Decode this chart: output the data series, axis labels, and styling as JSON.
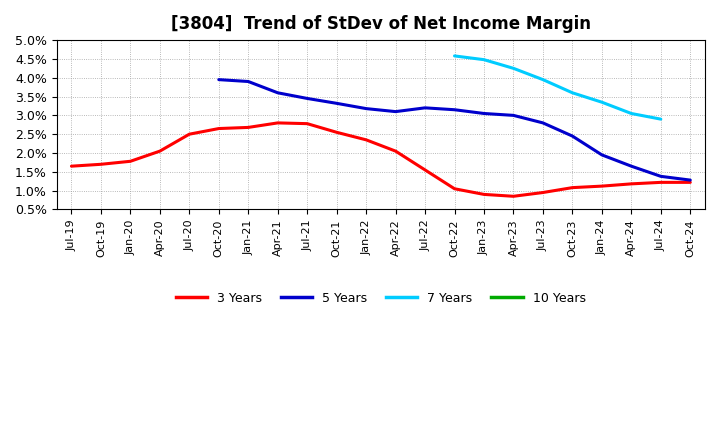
{
  "title": "[3804]  Trend of StDev of Net Income Margin",
  "x_labels": [
    "Jul-19",
    "Oct-19",
    "Jan-20",
    "Apr-20",
    "Jul-20",
    "Oct-20",
    "Jan-21",
    "Apr-21",
    "Jul-21",
    "Oct-21",
    "Jan-22",
    "Apr-22",
    "Jul-22",
    "Oct-22",
    "Jan-23",
    "Apr-23",
    "Jul-23",
    "Oct-23",
    "Jan-24",
    "Apr-24",
    "Jul-24",
    "Oct-24"
  ],
  "ylim": [
    0.005,
    0.05
  ],
  "yticks": [
    0.005,
    0.01,
    0.015,
    0.02,
    0.025,
    0.03,
    0.035,
    0.04,
    0.045,
    0.05
  ],
  "ytick_labels": [
    "0.5%",
    "1.0%",
    "1.5%",
    "2.0%",
    "2.5%",
    "3.0%",
    "3.5%",
    "4.0%",
    "4.5%",
    "5.0%"
  ],
  "series": {
    "3 Years": {
      "color": "#FF0000",
      "linewidth": 2.2,
      "values": [
        0.0165,
        0.017,
        0.0178,
        0.0205,
        0.025,
        0.0265,
        0.0268,
        0.028,
        0.0278,
        0.0255,
        0.0235,
        0.0205,
        0.0155,
        0.0105,
        0.009,
        0.0085,
        0.0095,
        0.0108,
        0.0112,
        0.0118,
        0.0122,
        0.0122
      ]
    },
    "5 Years": {
      "color": "#0000CC",
      "linewidth": 2.2,
      "values": [
        null,
        null,
        null,
        null,
        null,
        0.0395,
        0.039,
        0.036,
        0.0345,
        0.0332,
        0.0318,
        0.031,
        0.032,
        0.0315,
        0.0305,
        0.03,
        0.028,
        0.0245,
        0.0195,
        0.0165,
        0.0138,
        0.0128
      ]
    },
    "7 Years": {
      "color": "#00CCFF",
      "linewidth": 2.2,
      "values": [
        null,
        null,
        null,
        null,
        null,
        null,
        null,
        null,
        null,
        null,
        null,
        null,
        null,
        0.0458,
        0.0448,
        0.0425,
        0.0395,
        0.036,
        0.0335,
        0.0305,
        0.029,
        null
      ]
    },
    "10 Years": {
      "color": "#00AA00",
      "linewidth": 2.2,
      "values": [
        null,
        null,
        null,
        null,
        null,
        null,
        null,
        null,
        null,
        null,
        null,
        null,
        null,
        null,
        null,
        null,
        null,
        null,
        null,
        null,
        null,
        null
      ]
    }
  },
  "legend_labels": [
    "3 Years",
    "5 Years",
    "7 Years",
    "10 Years"
  ],
  "legend_colors": [
    "#FF0000",
    "#0000CC",
    "#00CCFF",
    "#00AA00"
  ],
  "background_color": "#FFFFFF",
  "plot_bg_color": "#FFFFFF",
  "grid_color": "#999999",
  "title_fontsize": 12,
  "title_fontweight": "bold"
}
